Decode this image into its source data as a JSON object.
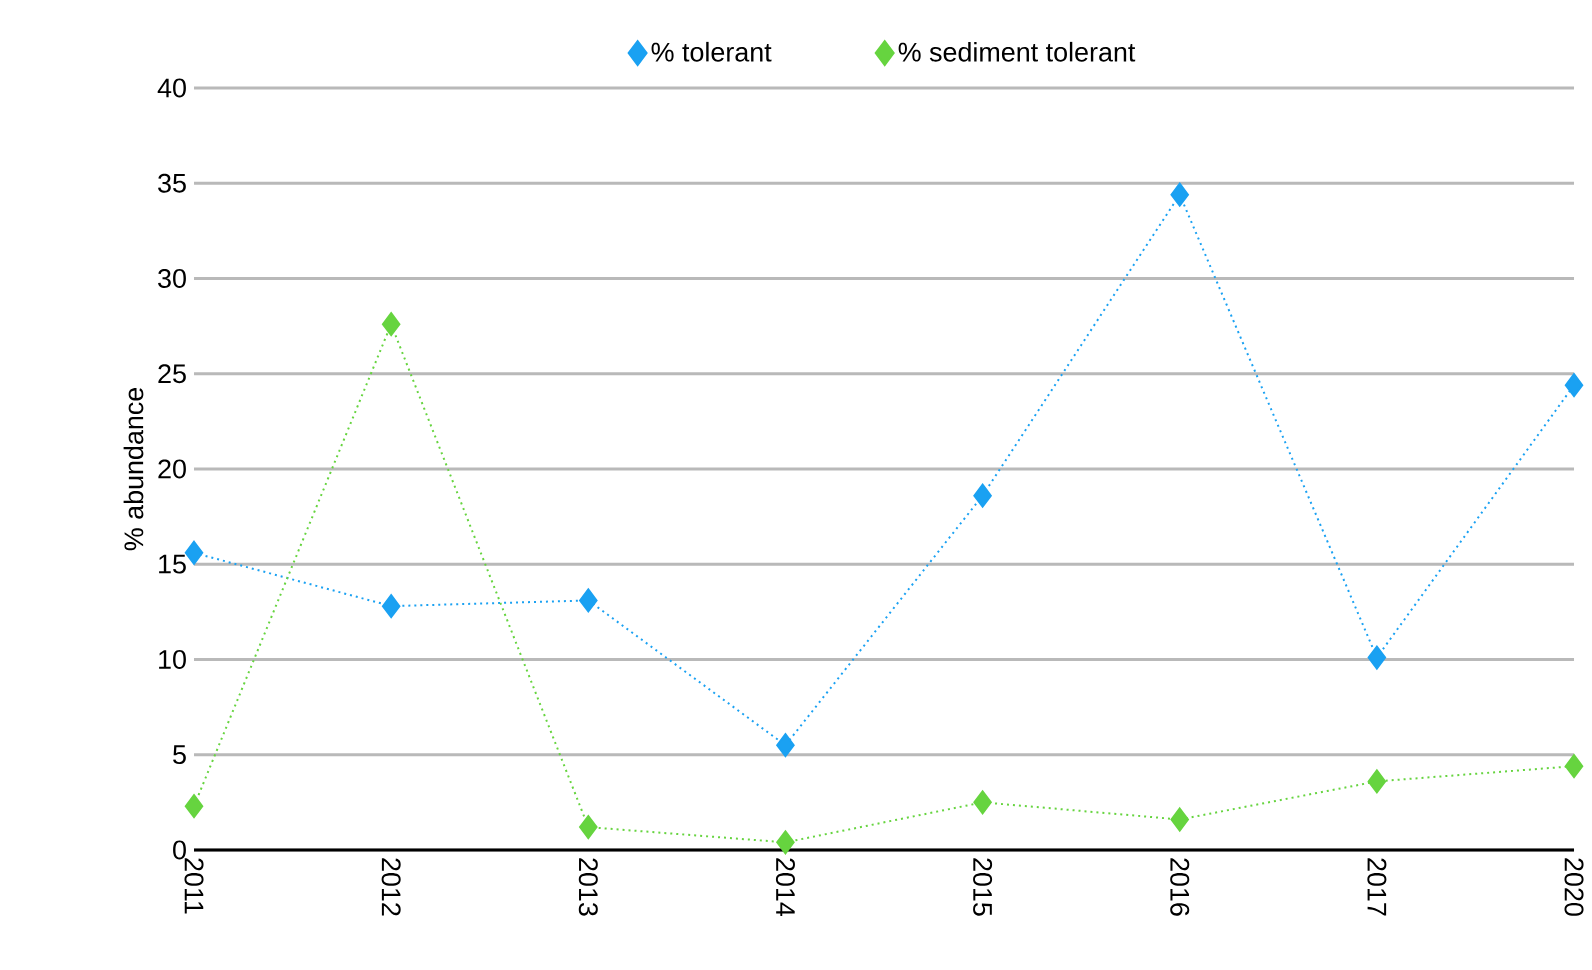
{
  "chart_data": {
    "type": "line",
    "ylabel": "% abundance",
    "categories": [
      "2011",
      "2012",
      "2013",
      "2014",
      "2015",
      "2016",
      "2017",
      "2020"
    ],
    "series": [
      {
        "name": "% tolerant",
        "color": "#1aa1f2",
        "values": [
          15.6,
          12.8,
          13.1,
          5.5,
          18.6,
          34.4,
          10.1,
          24.4
        ]
      },
      {
        "name": "% sediment tolerant",
        "color": "#66d43f",
        "values": [
          2.3,
          27.6,
          1.2,
          0.4,
          2.5,
          1.6,
          3.6,
          4.4
        ]
      }
    ],
    "ylim": [
      0,
      40
    ],
    "yticks": [
      0,
      5,
      10,
      15,
      20,
      25,
      30,
      35,
      40
    ],
    "grid": "y",
    "legend": "top",
    "marker": "diamond",
    "line_style": "dotted"
  }
}
